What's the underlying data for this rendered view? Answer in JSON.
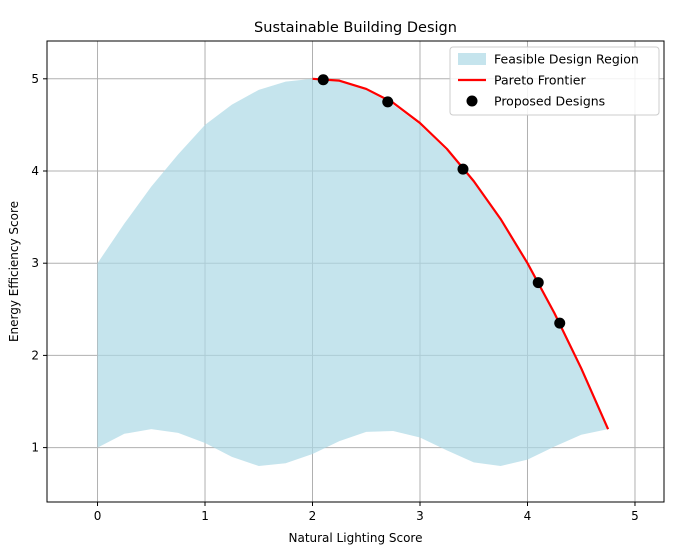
{
  "chart_data": {
    "type": "line",
    "title": "Sustainable Building Design",
    "xlabel": "Natural Lighting Score",
    "ylabel": "Energy Efficiency Score",
    "xlim": [
      -0.47,
      5.27
    ],
    "ylim": [
      0.41,
      5.41
    ],
    "xticks": [
      0,
      1,
      2,
      3,
      4,
      5
    ],
    "yticks": [
      1,
      2,
      3,
      4,
      5
    ],
    "grid": true,
    "legend_position": "top-right",
    "colors": {
      "feasible_region": "#add8e6",
      "pareto": "#ff0000",
      "designs": "#000000",
      "grid": "#b0b0b0"
    },
    "legend": [
      {
        "key": "feasible",
        "label": "Feasible Design Region"
      },
      {
        "key": "pareto",
        "label": "Pareto Frontier"
      },
      {
        "key": "designs",
        "label": "Proposed Designs"
      }
    ],
    "feasible_region": {
      "upper": [
        [
          0.0,
          3.0
        ],
        [
          0.25,
          3.43
        ],
        [
          0.5,
          3.83
        ],
        [
          0.75,
          4.18
        ],
        [
          1.0,
          4.5
        ],
        [
          1.25,
          4.72
        ],
        [
          1.5,
          4.88
        ],
        [
          1.75,
          4.97
        ],
        [
          2.0,
          5.0
        ],
        [
          2.25,
          4.98
        ],
        [
          2.5,
          4.88
        ],
        [
          2.75,
          4.72
        ],
        [
          3.0,
          4.5
        ],
        [
          3.25,
          4.22
        ],
        [
          3.5,
          3.88
        ],
        [
          3.75,
          3.47
        ],
        [
          4.0,
          3.0
        ],
        [
          4.25,
          2.47
        ],
        [
          4.5,
          1.88
        ],
        [
          4.75,
          1.2
        ]
      ],
      "lower": [
        [
          0.0,
          1.0
        ],
        [
          0.25,
          1.15
        ],
        [
          0.5,
          1.2
        ],
        [
          0.75,
          1.16
        ],
        [
          1.0,
          1.05
        ],
        [
          1.25,
          0.9
        ],
        [
          1.5,
          0.8
        ],
        [
          1.75,
          0.83
        ],
        [
          2.0,
          0.93
        ],
        [
          2.25,
          1.07
        ],
        [
          2.5,
          1.17
        ],
        [
          2.75,
          1.18
        ],
        [
          3.0,
          1.11
        ],
        [
          3.25,
          0.97
        ],
        [
          3.5,
          0.84
        ],
        [
          3.75,
          0.8
        ],
        [
          4.0,
          0.87
        ],
        [
          4.25,
          1.01
        ],
        [
          4.5,
          1.14
        ],
        [
          4.75,
          1.2
        ]
      ]
    },
    "pareto_frontier": [
      [
        2.0,
        5.0
      ],
      [
        2.25,
        4.98
      ],
      [
        2.5,
        4.89
      ],
      [
        2.75,
        4.74
      ],
      [
        3.0,
        4.52
      ],
      [
        3.25,
        4.24
      ],
      [
        3.5,
        3.89
      ],
      [
        3.75,
        3.48
      ],
      [
        4.0,
        3.0
      ],
      [
        4.25,
        2.46
      ],
      [
        4.5,
        1.86
      ],
      [
        4.75,
        1.2
      ]
    ],
    "proposed_designs": [
      {
        "x": 2.1,
        "y": 4.99
      },
      {
        "x": 2.7,
        "y": 4.75
      },
      {
        "x": 3.4,
        "y": 4.02
      },
      {
        "x": 4.1,
        "y": 2.79
      },
      {
        "x": 4.3,
        "y": 2.35
      }
    ]
  }
}
